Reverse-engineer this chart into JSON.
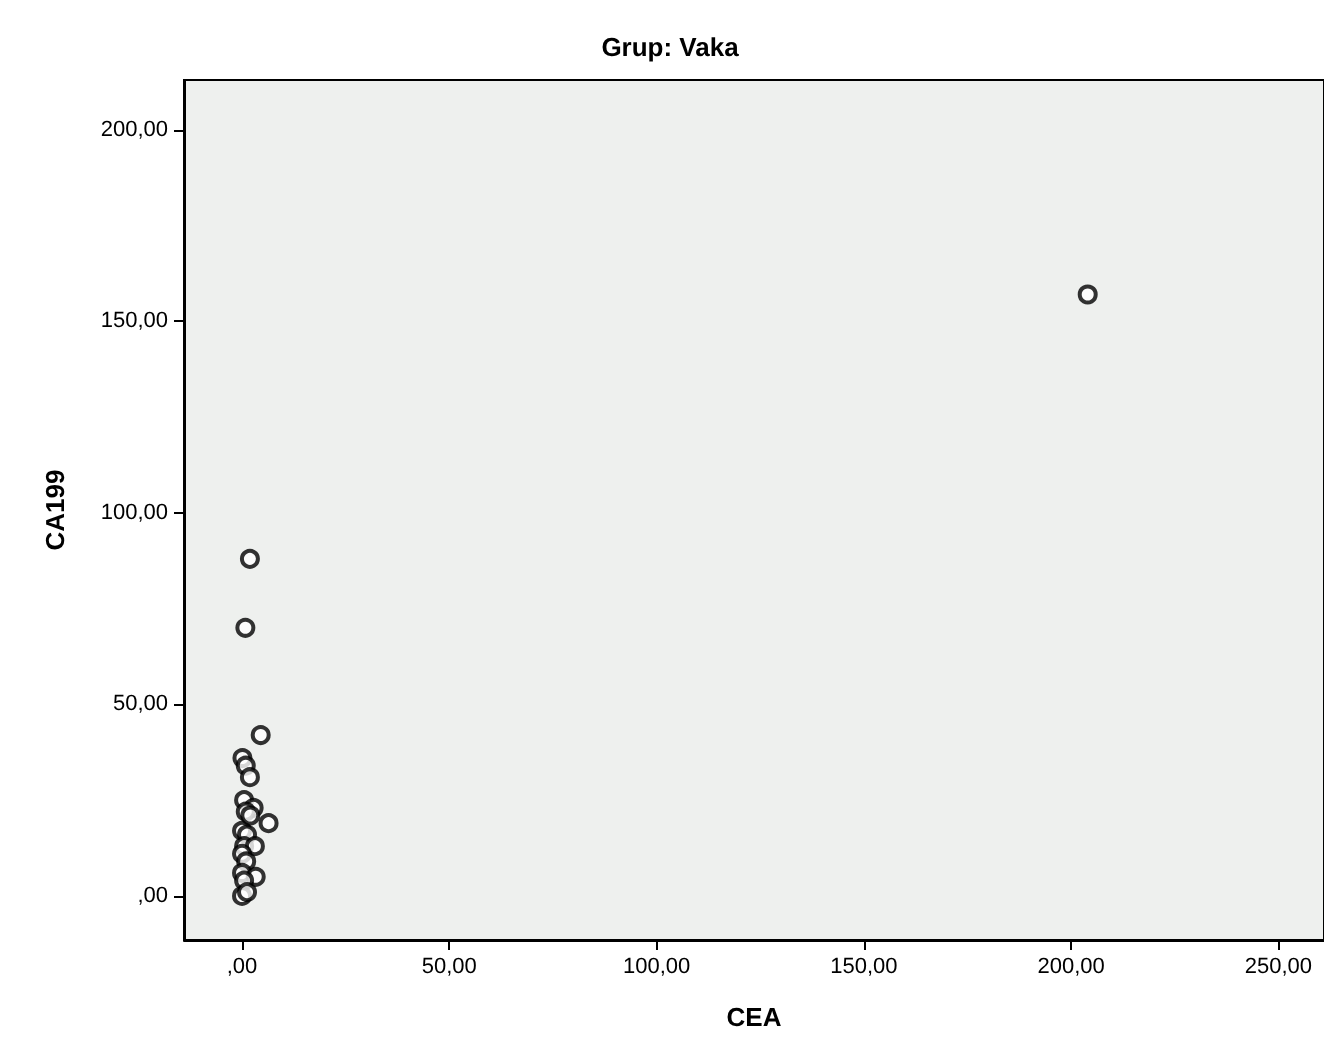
{
  "chart_data": {
    "type": "scatter",
    "title": "Grup: Vaka",
    "xlabel": "CEA",
    "ylabel": "CA199",
    "x": [
      204,
      1.9,
      0.8,
      4.5,
      0.1,
      0.9,
      1.9,
      0.5,
      2.8,
      0.9,
      6.4,
      0,
      1.2,
      0.5,
      3.1,
      0,
      1,
      0,
      3.3,
      0.5,
      0,
      1.2,
      2
    ],
    "series": [
      {
        "color": "#000000",
        "values": [
          157,
          88,
          70,
          42,
          36,
          34,
          31,
          25,
          23,
          22,
          19,
          17,
          16,
          13,
          13,
          11,
          9,
          6,
          5,
          4,
          0,
          1,
          21
        ]
      }
    ],
    "xlim": [
      -14,
      261
    ],
    "ylim": [
      -11.5,
      213
    ],
    "xticks": [
      {
        "value": 0,
        "label": ",00"
      },
      {
        "value": 50,
        "label": "50,00"
      },
      {
        "value": 100,
        "label": "100,00"
      },
      {
        "value": 150,
        "label": "150,00"
      },
      {
        "value": 200,
        "label": "200,00"
      },
      {
        "value": 250,
        "label": "250,00"
      }
    ],
    "yticks": [
      {
        "value": 0,
        "label": ",00"
      },
      {
        "value": 50,
        "label": "50,00"
      },
      {
        "value": 100,
        "label": "100,00"
      },
      {
        "value": 150,
        "label": "150,00"
      },
      {
        "value": 200,
        "label": "200,00"
      }
    ],
    "marker": "circle"
  }
}
